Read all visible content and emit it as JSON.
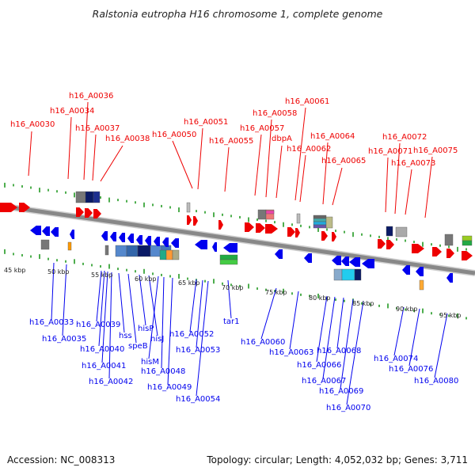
{
  "title": "Ralstonia eutropha H16 chromosome 1, complete genome",
  "footer": {
    "accession": "Accession: NC_008313",
    "stats": "Topology: circular; Length: 4,052,032 bp; Genes: 3,711"
  },
  "colors": {
    "forward_gene": "#ee0000",
    "reverse_gene": "#0000ee",
    "backbone": "#888888",
    "tick": "#229922"
  },
  "scale_labels": [
    "45 kbp",
    "50 kbp",
    "55 kbp",
    "60 kbp",
    "65 kbp",
    "70 kbp",
    "75 kbp",
    "80 kbp",
    "85 kbp",
    "90 kbp",
    "95 kbp"
  ],
  "top_genes": [
    "h16_A0030",
    "h16_A0034",
    "h16_A0036",
    "h16_A0037",
    "h16_A0038",
    "h16_A0050",
    "h16_A0051",
    "h16_A0055",
    "h16_A0057",
    "h16_A0058",
    "h16_A0061",
    "dbpA",
    "h16_A0062",
    "h16_A0064",
    "h16_A0065",
    "h16_A0071",
    "h16_A0072",
    "h16_A0073",
    "h16_A0075"
  ],
  "bottom_genes": [
    "h16_A0033",
    "h16_A0035",
    "h16_A0039",
    "h16_A0040",
    "h16_A0041",
    "h16_A0042",
    "hss",
    "speB",
    "hisP",
    "hisJ",
    "hisM",
    "h16_A0048",
    "h16_A0049",
    "h16_A0052",
    "h16_A0053",
    "h16_A0054",
    "tar1",
    "h16_A0060",
    "h16_A0063",
    "h16_A0066",
    "h16_A0067",
    "h16_A0068",
    "h16_A0069",
    "h16_A0070",
    "h16_A0074",
    "h16_A0076",
    "h16_A0080"
  ]
}
